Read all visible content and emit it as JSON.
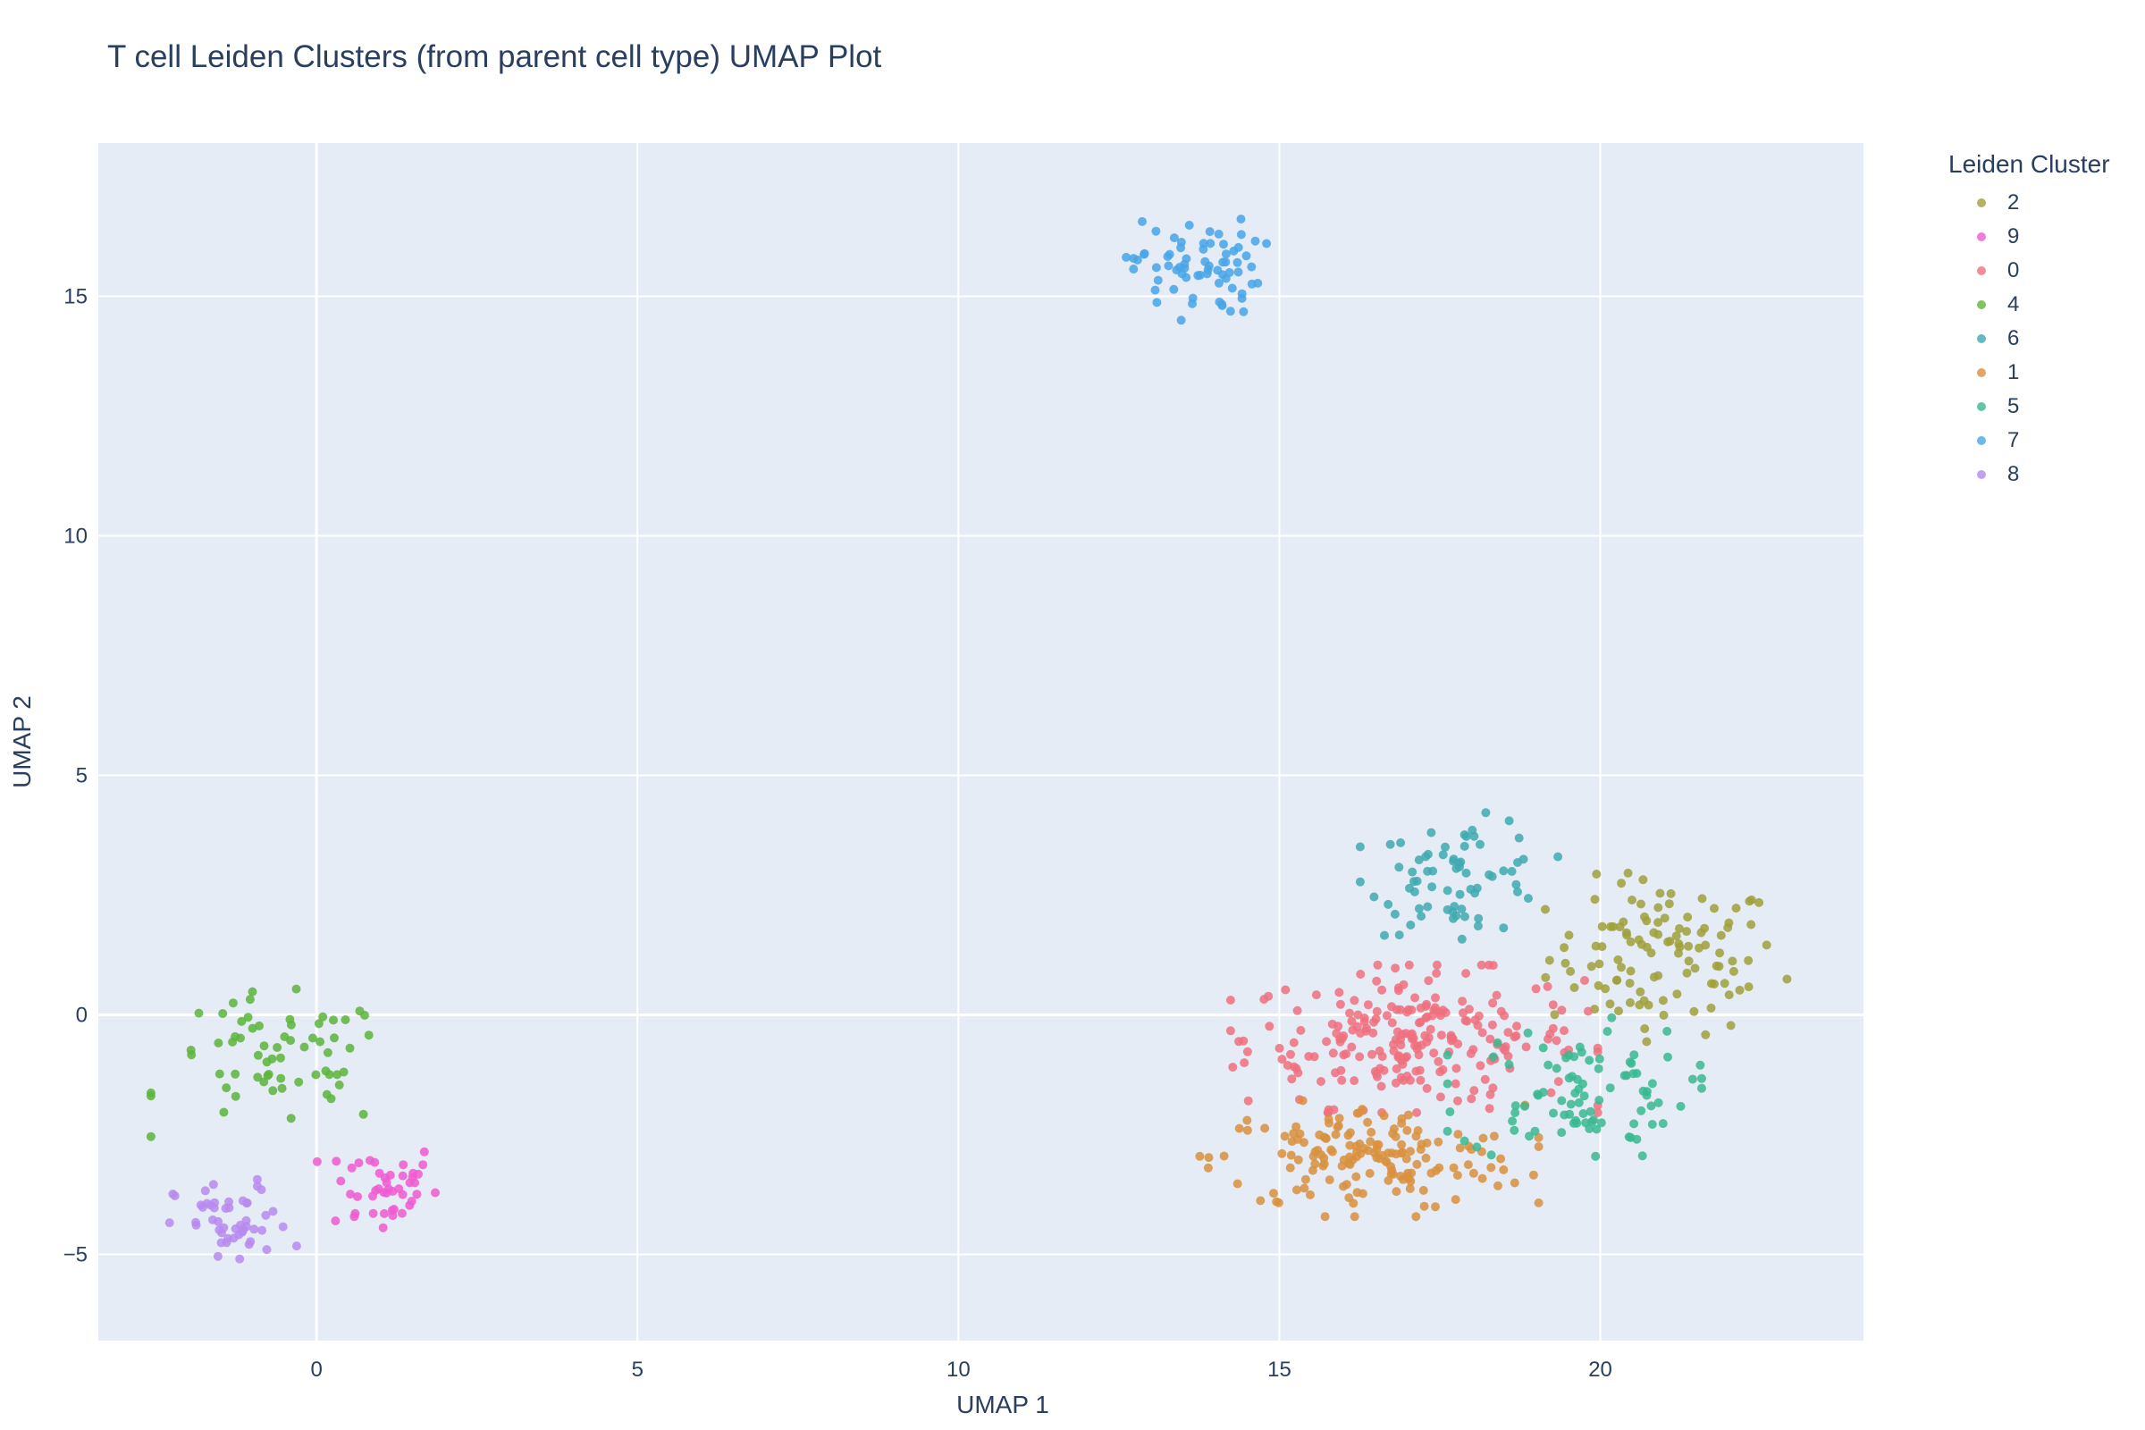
{
  "chart_data": {
    "type": "scatter",
    "title": "T cell Leiden Clusters (from parent cell type) UMAP Plot",
    "xlabel": "UMAP 1",
    "ylabel": "UMAP 2",
    "xlim": [
      -3.4,
      24.1
    ],
    "ylim": [
      -6.8,
      18.2
    ],
    "x_ticks": [
      0,
      5,
      10,
      15,
      20
    ],
    "y_ticks": [
      -5,
      0,
      5,
      10,
      15
    ],
    "x_tick_labels": [
      "0",
      "5",
      "10",
      "15",
      "20"
    ],
    "y_tick_labels": [
      "−5",
      "0",
      "5",
      "10",
      "15"
    ],
    "grid": true,
    "legend_title": "Leiden Cluster",
    "legend_position": "right",
    "background": "#e5ecf6",
    "series": [
      {
        "name": "2",
        "color": "#a0a03a",
        "cluster": {
          "center": [
            21.0,
            1.2
          ],
          "spread": [
            0.9,
            0.8
          ],
          "count": 110
        }
      },
      {
        "name": "9",
        "color": "#f05ad0",
        "cluster": {
          "center": [
            1.0,
            -3.6
          ],
          "spread": [
            0.45,
            0.5
          ],
          "count": 45
        }
      },
      {
        "name": "0",
        "color": "#f0707e",
        "cluster": {
          "center": [
            17.1,
            -0.5
          ],
          "spread": [
            1.3,
            0.7
          ],
          "count": 230
        }
      },
      {
        "name": "4",
        "color": "#5cb53c",
        "cluster": {
          "center": [
            -0.6,
            -1.0
          ],
          "spread": [
            0.9,
            0.7
          ],
          "count": 65
        }
      },
      {
        "name": "6",
        "color": "#40aab0",
        "cluster": {
          "center": [
            17.8,
            2.9
          ],
          "spread": [
            0.7,
            0.6
          ],
          "count": 70
        }
      },
      {
        "name": "1",
        "color": "#d9903e",
        "cluster": {
          "center": [
            16.4,
            -3.0
          ],
          "spread": [
            1.2,
            0.55
          ],
          "count": 160
        }
      },
      {
        "name": "5",
        "color": "#3ab890",
        "cluster": {
          "center": [
            19.6,
            -1.6
          ],
          "spread": [
            0.9,
            0.7
          ],
          "count": 90
        }
      },
      {
        "name": "7",
        "color": "#48a6e8",
        "cluster": {
          "center": [
            13.7,
            15.6
          ],
          "spread": [
            0.5,
            0.5
          ],
          "count": 70
        }
      },
      {
        "name": "8",
        "color": "#b889ee",
        "cluster": {
          "center": [
            -1.3,
            -4.4
          ],
          "spread": [
            0.45,
            0.45
          ],
          "count": 50
        }
      }
    ]
  }
}
